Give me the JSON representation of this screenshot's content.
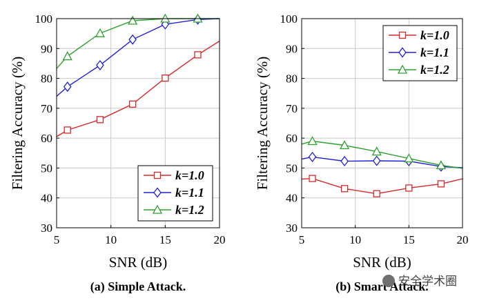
{
  "colors": {
    "k1": "#d62728",
    "k11": "#1f1fd6",
    "k12": "#2ca02c",
    "grid": "#c8c8c8",
    "axis": "#000000"
  },
  "watermark": {
    "icon": "wechat-icon",
    "text": "安全学术圈"
  },
  "chart_data": [
    {
      "type": "line",
      "caption": "(a) Simple Attack.",
      "xlabel": "SNR (dB)",
      "ylabel": "Filtering Accuracy (%)",
      "xlim": [
        5,
        20
      ],
      "ylim": [
        30,
        100
      ],
      "xticks": [
        "5",
        "10",
        "15",
        "20"
      ],
      "yticks": [
        "30",
        "40",
        "50",
        "60",
        "70",
        "80",
        "90",
        "100"
      ],
      "grid": true,
      "legend_position": "bottom-right",
      "series": [
        {
          "name": "k=1.0",
          "marker": "square",
          "color_key": "k1",
          "x": [
            5,
            6,
            9,
            12,
            15,
            18,
            20
          ],
          "y": [
            60.5,
            62.7,
            66.2,
            71.4,
            80.1,
            87.9,
            92.5
          ],
          "marker_x": [
            6,
            9,
            12,
            15,
            18
          ]
        },
        {
          "name": "k=1.1",
          "marker": "diamond",
          "color_key": "k11",
          "x": [
            5,
            6,
            9,
            12,
            15,
            18,
            20
          ],
          "y": [
            74.0,
            77.2,
            84.4,
            93.0,
            98.1,
            99.7,
            100
          ],
          "marker_x": [
            6,
            9,
            12,
            15,
            18
          ]
        },
        {
          "name": "k=1.2",
          "marker": "triangle",
          "color_key": "k12",
          "x": [
            5,
            6,
            9,
            12,
            15,
            18,
            20
          ],
          "y": [
            83.3,
            87.4,
            95.1,
            99.3,
            100,
            100,
            100
          ],
          "marker_x": [
            6,
            9,
            12,
            15,
            18
          ]
        }
      ]
    },
    {
      "type": "line",
      "caption": "(b) Smart Attack.",
      "xlabel": "SNR (dB)",
      "ylabel": "Filtering Accuracy (%)",
      "xlim": [
        5,
        20
      ],
      "ylim": [
        30,
        100
      ],
      "xticks": [
        "5",
        "10",
        "15",
        "20"
      ],
      "yticks": [
        "30",
        "40",
        "50",
        "60",
        "70",
        "80",
        "90",
        "100"
      ],
      "grid": true,
      "legend_position": "top-right",
      "series": [
        {
          "name": "k=1.0",
          "marker": "square",
          "color_key": "k1",
          "x": [
            5,
            6,
            9,
            12,
            15,
            18,
            20
          ],
          "y": [
            46.3,
            46.5,
            43.1,
            41.4,
            43.3,
            44.7,
            46.4
          ],
          "marker_x": [
            6,
            9,
            12,
            15,
            18
          ]
        },
        {
          "name": "k=1.1",
          "marker": "diamond",
          "color_key": "k11",
          "x": [
            5,
            6,
            9,
            12,
            15,
            18,
            20
          ],
          "y": [
            53.0,
            53.7,
            52.3,
            52.4,
            52.3,
            50.5,
            50.1
          ],
          "marker_x": [
            6,
            9,
            12,
            15,
            18
          ]
        },
        {
          "name": "k=1.2",
          "marker": "triangle",
          "color_key": "k12",
          "x": [
            5,
            6,
            9,
            12,
            15,
            18,
            20
          ],
          "y": [
            58.0,
            59.0,
            57.6,
            55.5,
            53.2,
            50.9,
            49.9
          ],
          "marker_x": [
            6,
            9,
            12,
            15,
            18
          ]
        }
      ]
    }
  ]
}
